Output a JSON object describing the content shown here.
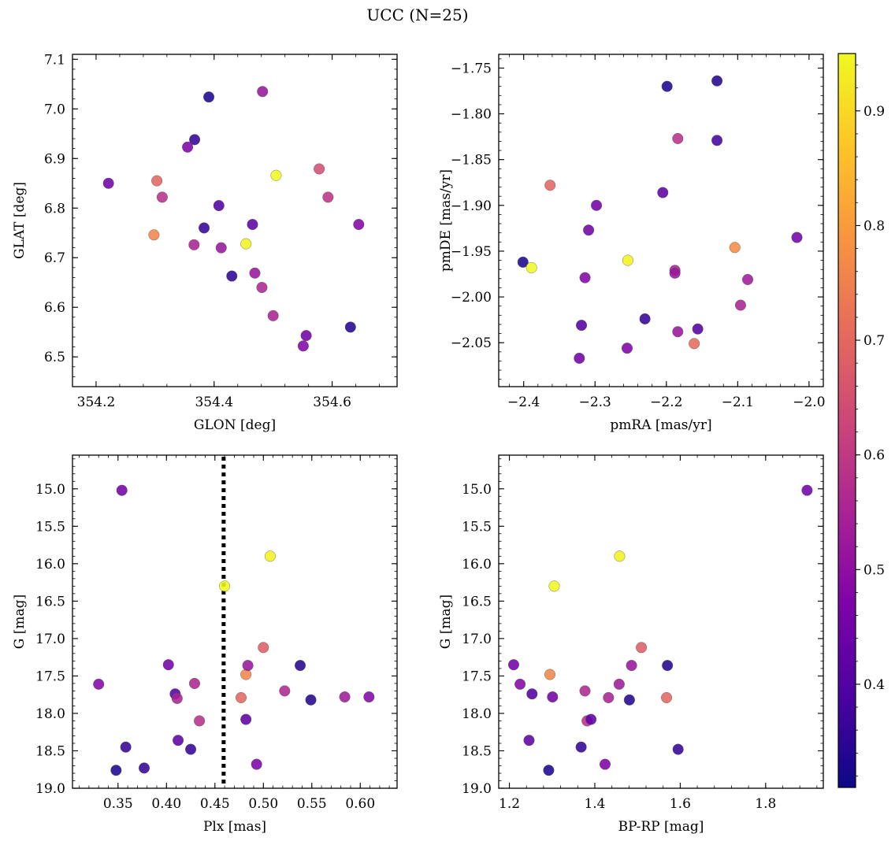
{
  "figure": {
    "title": "UCC (N=25)"
  },
  "colorbar": {
    "colormap": "plasma",
    "vmin": 0.31,
    "vmax": 0.95,
    "ticks": [
      0.4,
      0.5,
      0.6,
      0.7,
      0.8,
      0.9
    ],
    "tick_labels": [
      "0.4",
      "0.5",
      "0.6",
      "0.7",
      "0.8",
      "0.9"
    ]
  },
  "chart_data": [
    {
      "type": "scatter",
      "xlabel": "GLON [deg]",
      "ylabel": "GLAT [deg]",
      "xlim": [
        354.16,
        354.71
      ],
      "ylim": [
        6.44,
        7.11
      ],
      "xticks": [
        354.2,
        354.4,
        354.6
      ],
      "xtick_labels": [
        "354.2",
        "354.4",
        "354.6"
      ],
      "yticks": [
        6.5,
        6.6,
        6.7,
        6.8,
        6.9,
        7.0,
        7.1
      ],
      "ytick_labels": [
        "6.5",
        "6.6",
        "6.7",
        "6.8",
        "6.9",
        "7.0",
        "7.1"
      ],
      "y_inverted": false,
      "points": [
        {
          "x": 354.221,
          "y": 6.85,
          "c": 0.45
        },
        {
          "x": 354.303,
          "y": 6.855,
          "c": 0.7
        },
        {
          "x": 354.312,
          "y": 6.822,
          "c": 0.58
        },
        {
          "x": 354.298,
          "y": 6.746,
          "c": 0.76
        },
        {
          "x": 354.391,
          "y": 7.024,
          "c": 0.33
        },
        {
          "x": 354.367,
          "y": 6.938,
          "c": 0.36
        },
        {
          "x": 354.355,
          "y": 6.923,
          "c": 0.47
        },
        {
          "x": 354.408,
          "y": 6.805,
          "c": 0.4
        },
        {
          "x": 354.383,
          "y": 6.76,
          "c": 0.36
        },
        {
          "x": 354.366,
          "y": 6.726,
          "c": 0.55
        },
        {
          "x": 354.412,
          "y": 6.72,
          "c": 0.52
        },
        {
          "x": 354.43,
          "y": 6.663,
          "c": 0.35
        },
        {
          "x": 354.454,
          "y": 6.728,
          "c": 0.94
        },
        {
          "x": 354.482,
          "y": 7.035,
          "c": 0.52
        },
        {
          "x": 354.505,
          "y": 6.866,
          "c": 0.95
        },
        {
          "x": 354.465,
          "y": 6.767,
          "c": 0.42
        },
        {
          "x": 354.469,
          "y": 6.669,
          "c": 0.52
        },
        {
          "x": 354.481,
          "y": 6.64,
          "c": 0.56
        },
        {
          "x": 354.5,
          "y": 6.583,
          "c": 0.55
        },
        {
          "x": 354.578,
          "y": 6.879,
          "c": 0.65
        },
        {
          "x": 354.593,
          "y": 6.822,
          "c": 0.59
        },
        {
          "x": 354.556,
          "y": 6.543,
          "c": 0.45
        },
        {
          "x": 354.551,
          "y": 6.522,
          "c": 0.48
        },
        {
          "x": 354.631,
          "y": 6.56,
          "c": 0.34
        },
        {
          "x": 354.645,
          "y": 6.767,
          "c": 0.48
        }
      ]
    },
    {
      "type": "scatter",
      "xlabel": "pmRA [mas/yr]",
      "ylabel": "pmDE [mas/yr]",
      "xlim": [
        -2.435,
        -1.98
      ],
      "ylim": [
        -2.098,
        -1.735
      ],
      "xticks": [
        -2.4,
        -2.3,
        -2.2,
        -2.1,
        -2.0
      ],
      "xtick_labels": [
        "−2.4",
        "−2.3",
        "−2.2",
        "−2.1",
        "−2.0"
      ],
      "yticks": [
        -2.05,
        -2.0,
        -1.95,
        -1.9,
        -1.85,
        -1.8,
        -1.75
      ],
      "ytick_labels": [
        "−2.05",
        "−2.00",
        "−1.95",
        "−1.90",
        "−1.85",
        "−1.80",
        "−1.75"
      ],
      "y_inverted": false,
      "points": [
        {
          "x": -2.401,
          "y": -1.962,
          "c": 0.33
        },
        {
          "x": -2.389,
          "y": -1.968,
          "c": 0.95
        },
        {
          "x": -2.363,
          "y": -1.878,
          "c": 0.7
        },
        {
          "x": -2.322,
          "y": -2.067,
          "c": 0.45
        },
        {
          "x": -2.319,
          "y": -2.031,
          "c": 0.4
        },
        {
          "x": -2.314,
          "y": -1.979,
          "c": 0.48
        },
        {
          "x": -2.309,
          "y": -1.927,
          "c": 0.45
        },
        {
          "x": -2.298,
          "y": -1.9,
          "c": 0.45
        },
        {
          "x": -2.254,
          "y": -1.96,
          "c": 0.94
        },
        {
          "x": -2.255,
          "y": -2.056,
          "c": 0.47
        },
        {
          "x": -2.23,
          "y": -2.024,
          "c": 0.36
        },
        {
          "x": -2.205,
          "y": -1.886,
          "c": 0.42
        },
        {
          "x": -2.199,
          "y": -1.77,
          "c": 0.33
        },
        {
          "x": -2.188,
          "y": -1.971,
          "c": 0.55
        },
        {
          "x": -2.188,
          "y": -1.974,
          "c": 0.52
        },
        {
          "x": -2.184,
          "y": -1.827,
          "c": 0.58
        },
        {
          "x": -2.184,
          "y": -2.038,
          "c": 0.52
        },
        {
          "x": -2.161,
          "y": -2.051,
          "c": 0.71
        },
        {
          "x": -2.156,
          "y": -2.035,
          "c": 0.4
        },
        {
          "x": -2.129,
          "y": -1.764,
          "c": 0.34
        },
        {
          "x": -2.129,
          "y": -1.829,
          "c": 0.38
        },
        {
          "x": -2.104,
          "y": -1.946,
          "c": 0.77
        },
        {
          "x": -2.096,
          "y": -2.009,
          "c": 0.55
        },
        {
          "x": -2.086,
          "y": -1.981,
          "c": 0.53
        },
        {
          "x": -2.017,
          "y": -1.935,
          "c": 0.45
        }
      ]
    },
    {
      "type": "scatter",
      "xlabel": "Plx [mas]",
      "ylabel": "G [mag]",
      "xlim": [
        0.303,
        0.638
      ],
      "ylim": [
        14.55,
        19.0
      ],
      "xticks": [
        0.35,
        0.4,
        0.45,
        0.5,
        0.55,
        0.6
      ],
      "xtick_labels": [
        "0.35",
        "0.40",
        "0.45",
        "0.50",
        "0.55",
        "0.60"
      ],
      "yticks": [
        15.0,
        15.5,
        16.0,
        16.5,
        17.0,
        17.5,
        18.0,
        18.5,
        19.0
      ],
      "ytick_labels": [
        "15.0",
        "15.5",
        "16.0",
        "16.5",
        "17.0",
        "17.5",
        "18.0",
        "18.5",
        "19.0"
      ],
      "y_inverted": true,
      "vline": 0.459,
      "points": [
        {
          "x": 0.354,
          "y": 15.02,
          "c": 0.45
        },
        {
          "x": 0.33,
          "y": 17.61,
          "c": 0.48
        },
        {
          "x": 0.358,
          "y": 18.45,
          "c": 0.36
        },
        {
          "x": 0.348,
          "y": 18.76,
          "c": 0.33
        },
        {
          "x": 0.377,
          "y": 18.73,
          "c": 0.36
        },
        {
          "x": 0.402,
          "y": 17.35,
          "c": 0.45
        },
        {
          "x": 0.409,
          "y": 17.74,
          "c": 0.4
        },
        {
          "x": 0.411,
          "y": 17.8,
          "c": 0.55
        },
        {
          "x": 0.412,
          "y": 18.36,
          "c": 0.42
        },
        {
          "x": 0.425,
          "y": 18.48,
          "c": 0.36
        },
        {
          "x": 0.429,
          "y": 17.6,
          "c": 0.56
        },
        {
          "x": 0.434,
          "y": 18.1,
          "c": 0.58
        },
        {
          "x": 0.46,
          "y": 16.3,
          "c": 0.95
        },
        {
          "x": 0.477,
          "y": 17.79,
          "c": 0.7
        },
        {
          "x": 0.482,
          "y": 17.48,
          "c": 0.76
        },
        {
          "x": 0.484,
          "y": 17.36,
          "c": 0.52
        },
        {
          "x": 0.482,
          "y": 18.08,
          "c": 0.42
        },
        {
          "x": 0.493,
          "y": 18.68,
          "c": 0.47
        },
        {
          "x": 0.5,
          "y": 17.12,
          "c": 0.68
        },
        {
          "x": 0.507,
          "y": 15.9,
          "c": 0.94
        },
        {
          "x": 0.522,
          "y": 17.7,
          "c": 0.56
        },
        {
          "x": 0.538,
          "y": 17.36,
          "c": 0.34
        },
        {
          "x": 0.549,
          "y": 17.82,
          "c": 0.34
        },
        {
          "x": 0.584,
          "y": 17.78,
          "c": 0.53
        },
        {
          "x": 0.609,
          "y": 17.78,
          "c": 0.48
        }
      ]
    },
    {
      "type": "scatter",
      "xlabel": "BP-RP [mag]",
      "ylabel": "G [mag]",
      "xlim": [
        1.175,
        1.935
      ],
      "ylim": [
        14.55,
        19.0
      ],
      "xticks": [
        1.2,
        1.4,
        1.6,
        1.8
      ],
      "xtick_labels": [
        "1.2",
        "1.4",
        "1.6",
        "1.8"
      ],
      "yticks": [
        15.0,
        15.5,
        16.0,
        16.5,
        17.0,
        17.5,
        18.0,
        18.5,
        19.0
      ],
      "ytick_labels": [
        "15.0",
        "15.5",
        "16.0",
        "16.5",
        "17.0",
        "17.5",
        "18.0",
        "18.5",
        "19.0"
      ],
      "y_inverted": true,
      "points": [
        {
          "x": 1.897,
          "y": 15.02,
          "c": 0.45
        },
        {
          "x": 1.458,
          "y": 15.9,
          "c": 0.94
        },
        {
          "x": 1.305,
          "y": 16.3,
          "c": 0.95
        },
        {
          "x": 1.21,
          "y": 17.35,
          "c": 0.45
        },
        {
          "x": 1.225,
          "y": 17.61,
          "c": 0.48
        },
        {
          "x": 1.253,
          "y": 17.74,
          "c": 0.4
        },
        {
          "x": 1.295,
          "y": 17.48,
          "c": 0.76
        },
        {
          "x": 1.301,
          "y": 17.78,
          "c": 0.45
        },
        {
          "x": 1.377,
          "y": 17.7,
          "c": 0.56
        },
        {
          "x": 1.382,
          "y": 18.1,
          "c": 0.58
        },
        {
          "x": 1.391,
          "y": 18.08,
          "c": 0.42
        },
        {
          "x": 1.432,
          "y": 17.79,
          "c": 0.55
        },
        {
          "x": 1.457,
          "y": 17.61,
          "c": 0.53
        },
        {
          "x": 1.486,
          "y": 17.36,
          "c": 0.52
        },
        {
          "x": 1.481,
          "y": 17.82,
          "c": 0.34
        },
        {
          "x": 1.509,
          "y": 17.12,
          "c": 0.68
        },
        {
          "x": 1.568,
          "y": 17.79,
          "c": 0.7
        },
        {
          "x": 1.57,
          "y": 17.36,
          "c": 0.34
        },
        {
          "x": 1.246,
          "y": 18.36,
          "c": 0.42
        },
        {
          "x": 1.368,
          "y": 18.45,
          "c": 0.36
        },
        {
          "x": 1.424,
          "y": 18.68,
          "c": 0.47
        },
        {
          "x": 1.595,
          "y": 18.48,
          "c": 0.36
        },
        {
          "x": 1.292,
          "y": 18.76,
          "c": 0.33
        }
      ]
    }
  ]
}
